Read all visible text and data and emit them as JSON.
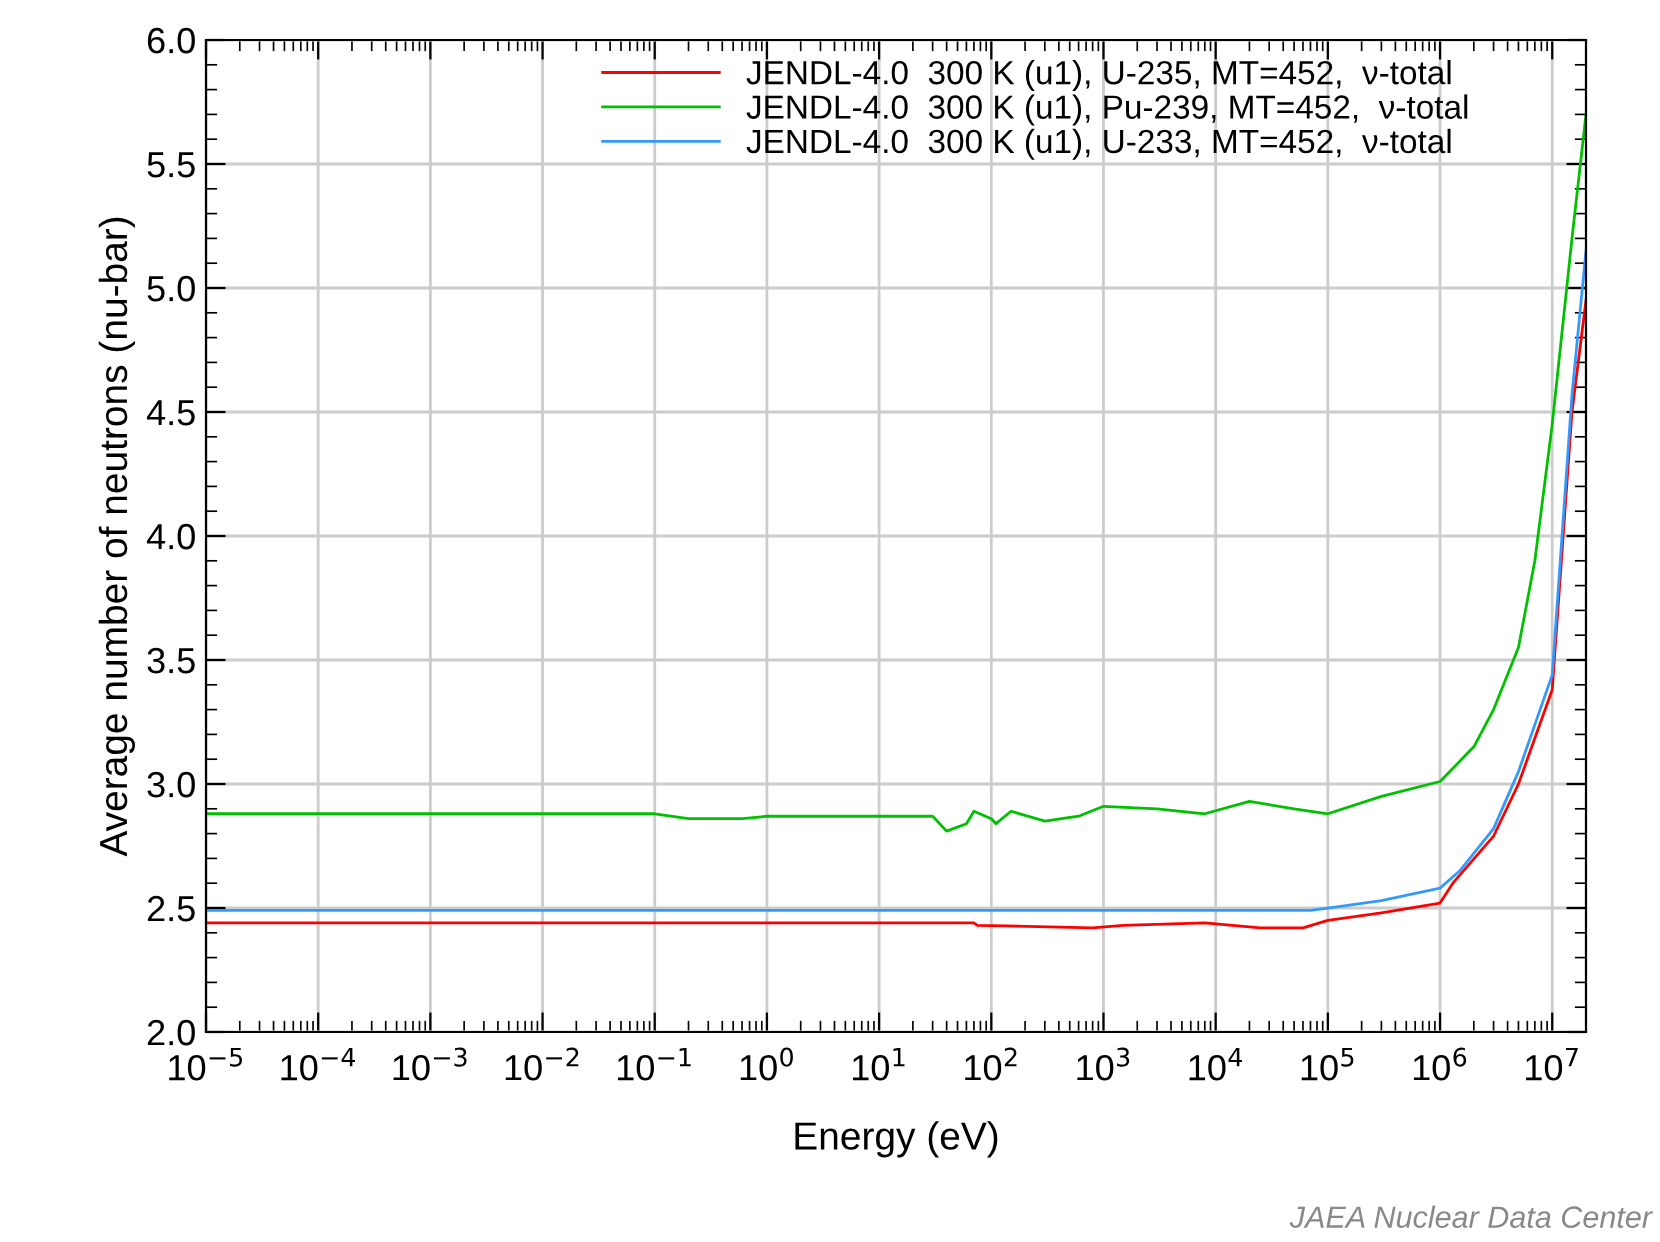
{
  "chart_data": {
    "type": "line",
    "xlabel": "Energy (eV)",
    "ylabel": "Average number of neutrons (nu-bar)",
    "log": "x",
    "grid": true,
    "legend": "top right",
    "marker": "none",
    "line_style": "solid",
    "xlim": [
      1e-05,
      20000000.0
    ],
    "xticks": [
      {
        "value": 1e-05,
        "label": "10$^{−5}$"
      },
      {
        "value": 0.0001,
        "label": "10$^{−4}$"
      },
      {
        "value": 0.001,
        "label": "10$^{−3}$"
      },
      {
        "value": 0.01,
        "label": "10$^{−2}$"
      },
      {
        "value": 0.1,
        "label": "10$^{−1}$"
      },
      {
        "value": 1,
        "label": "10$^{0}$"
      },
      {
        "value": 10,
        "label": "10$^{1}$"
      },
      {
        "value": 100,
        "label": "10$^{2}$"
      },
      {
        "value": 1000,
        "label": "10$^{3}$"
      },
      {
        "value": 10000,
        "label": "10$^{4}$"
      },
      {
        "value": 100000,
        "label": "10$^{5}$"
      },
      {
        "value": 1000000,
        "label": "10$^{6}$"
      },
      {
        "value": 10000000,
        "label": "10$^{7}$"
      }
    ],
    "ylim": [
      2.0,
      6.0
    ],
    "yticks": [
      {
        "value": 2.0,
        "label": "2.0"
      },
      2.5,
      {
        "value": 3.0,
        "label": "3.0"
      },
      3.5,
      {
        "value": 4.0,
        "label": "4.0"
      },
      4.5,
      {
        "value": 5.0,
        "label": "5.0"
      },
      5.5,
      {
        "value": 6.0,
        "label": "6.0"
      }
    ],
    "annotations": [
      "JAEA Nuclear Data Center"
    ],
    "series": [
      {
        "name": "JENDL-4.0  300 K (u1), U-235, MT=452,  ν-total",
        "color": "#ff0000",
        "x": [
          1e-05,
          70,
          75,
          800,
          1500,
          8000,
          25000,
          60000,
          100000,
          300000,
          1000000,
          1300000,
          3000000,
          5000000,
          10000000,
          15000000,
          20000000
        ],
        "values": [
          2.44,
          2.44,
          2.43,
          2.42,
          2.43,
          2.44,
          2.42,
          2.42,
          2.45,
          2.48,
          2.52,
          2.6,
          2.79,
          3.0,
          3.38,
          4.5,
          4.95
        ]
      },
      {
        "name": "JENDL-4.0  300 K (u1), Pu-239, MT=452,  ν-total",
        "color": "#00c000",
        "x": [
          1e-05,
          0.1,
          0.2,
          0.6,
          1,
          30,
          40,
          60,
          70,
          100,
          110,
          150,
          300,
          600,
          1000,
          3000,
          8000,
          20000,
          50000,
          100000,
          300000,
          1000000,
          2000000,
          3000000,
          5000000,
          7000000,
          10000000,
          15000000,
          20000000
        ],
        "values": [
          2.88,
          2.88,
          2.86,
          2.86,
          2.87,
          2.87,
          2.81,
          2.84,
          2.89,
          2.86,
          2.84,
          2.89,
          2.85,
          2.87,
          2.91,
          2.9,
          2.88,
          2.93,
          2.9,
          2.88,
          2.95,
          3.01,
          3.15,
          3.3,
          3.55,
          3.9,
          4.45,
          5.2,
          5.7
        ]
      },
      {
        "name": "JENDL-4.0  300 K (u1), U-233, MT=452,  ν-total",
        "color": "#3399ff",
        "x": [
          1e-05,
          70000,
          100000,
          300000,
          1000000,
          1500000,
          3000000,
          5000000,
          10000000,
          15000000,
          20000000
        ],
        "values": [
          2.49,
          2.49,
          2.5,
          2.53,
          2.58,
          2.65,
          2.82,
          3.05,
          3.44,
          4.57,
          5.15
        ]
      }
    ]
  }
}
